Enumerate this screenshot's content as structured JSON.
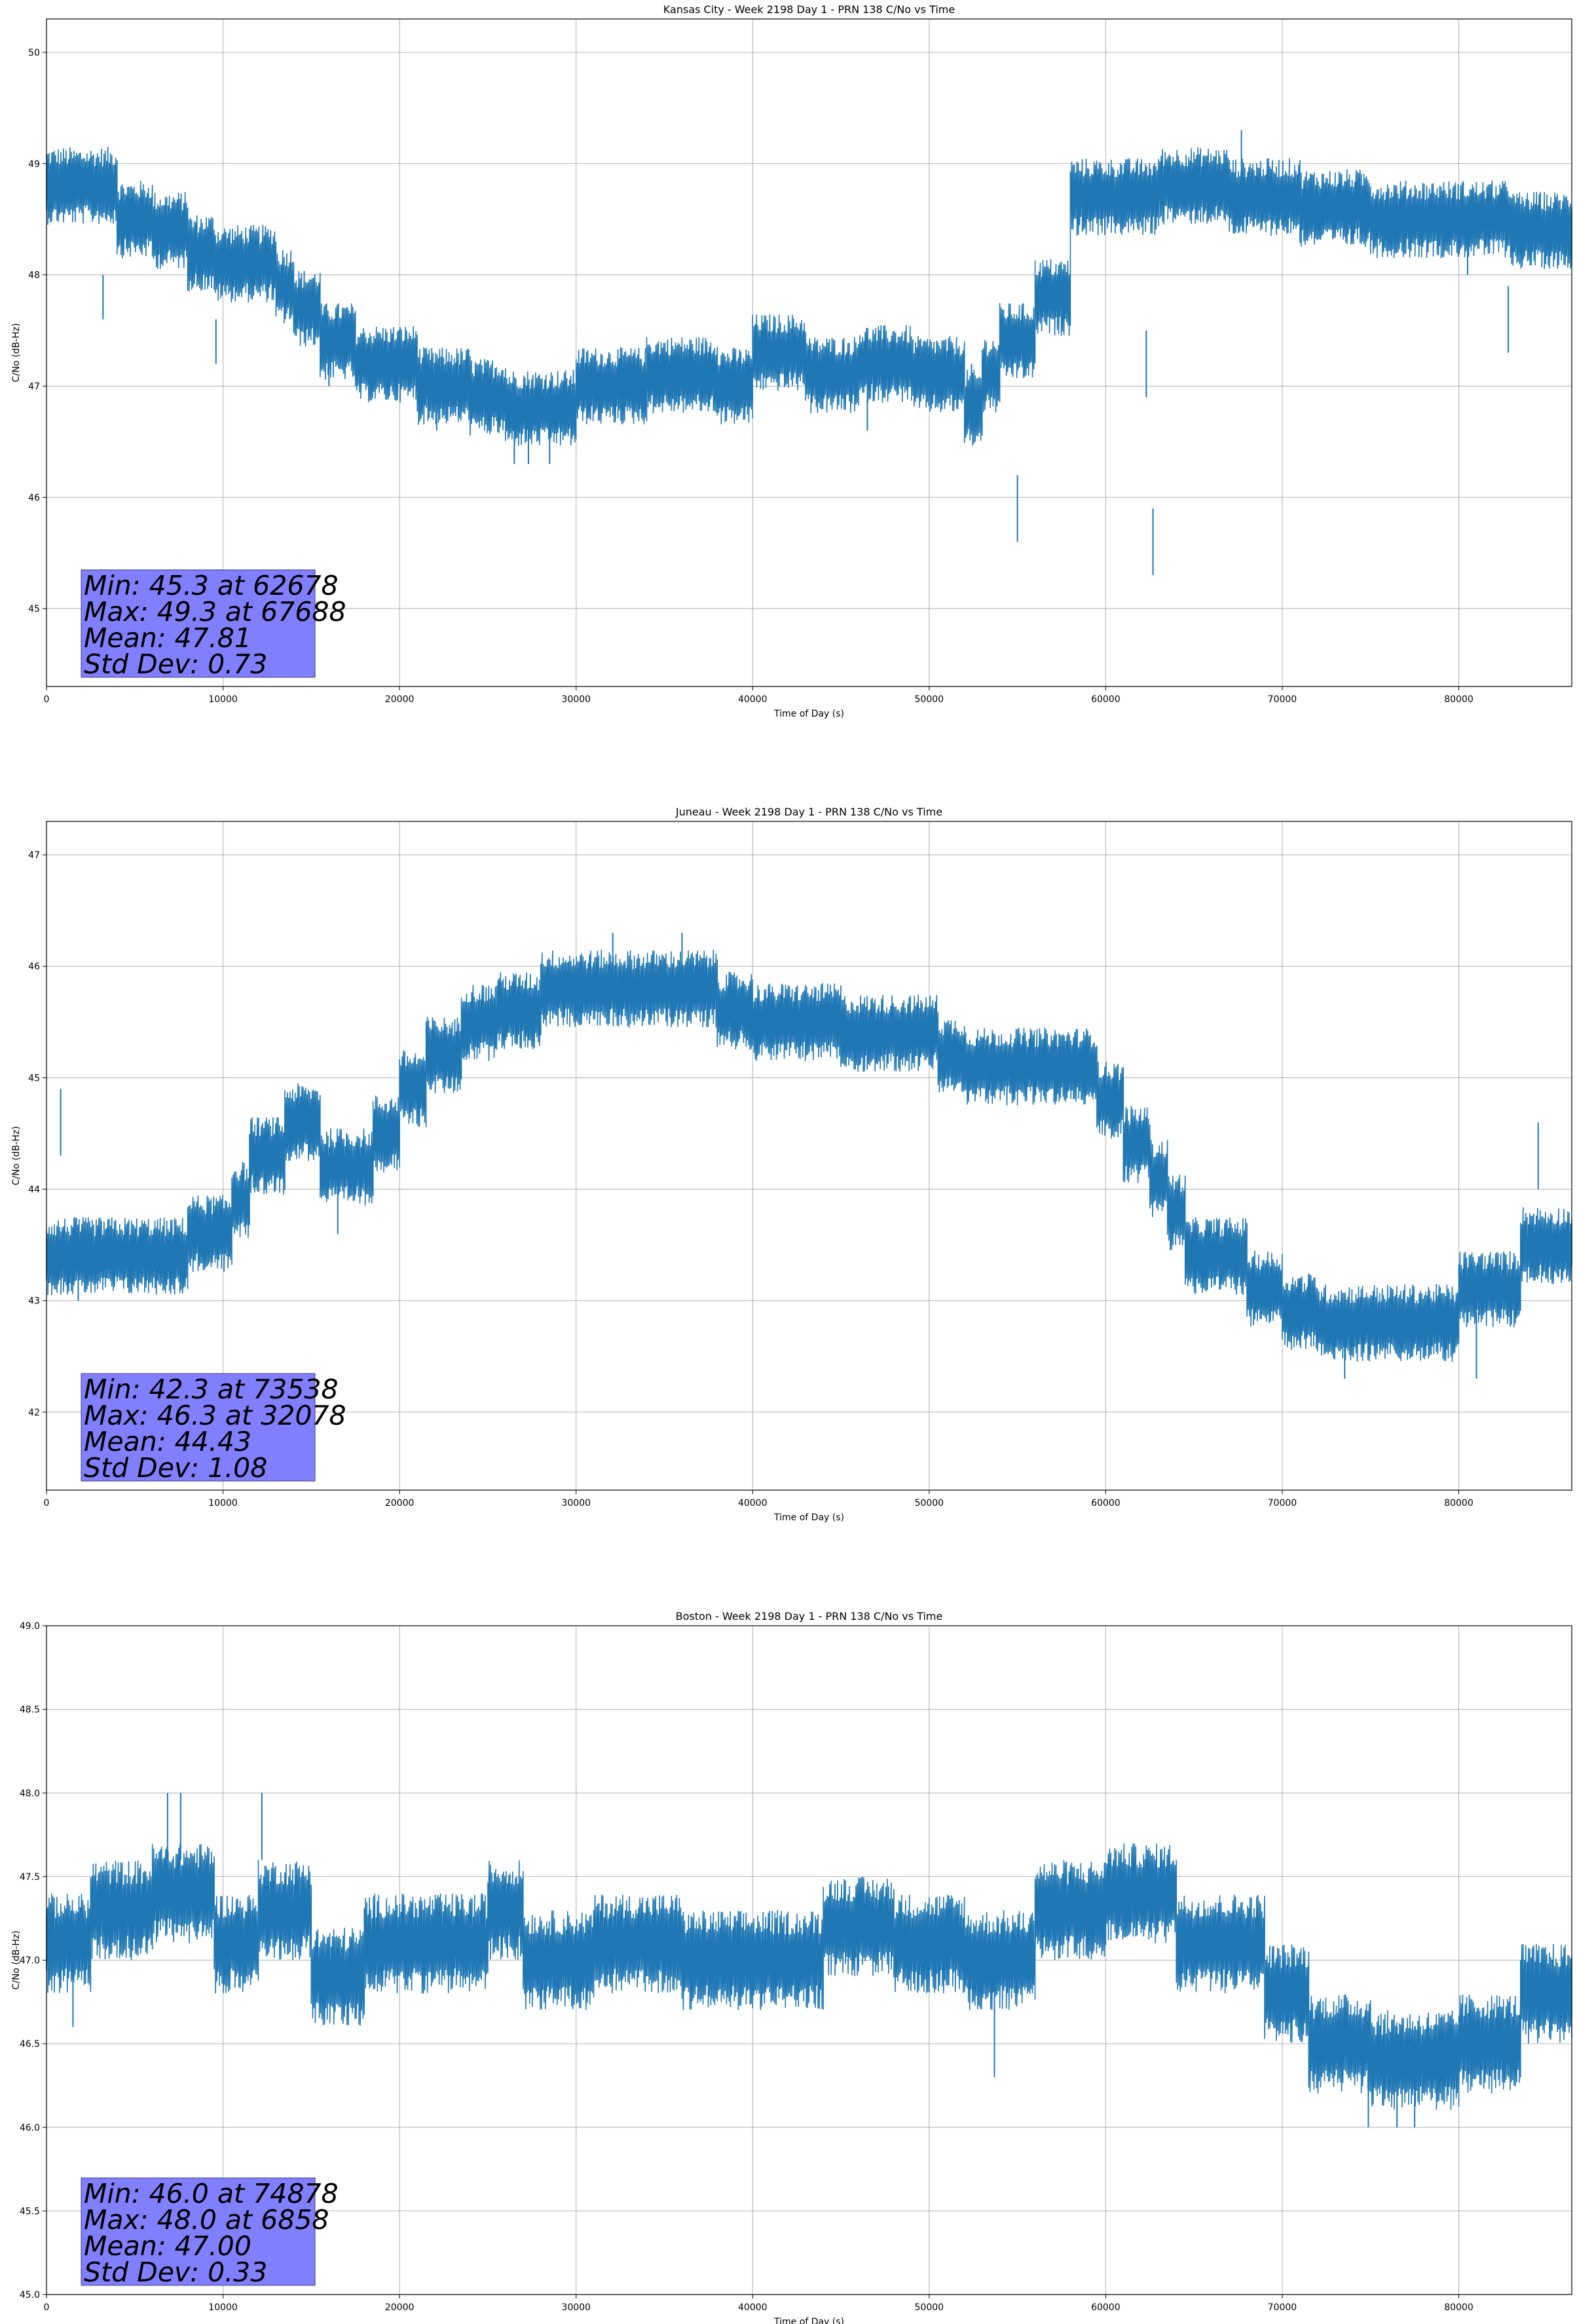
{
  "chart_data": [
    {
      "type": "line",
      "title": "Kansas City - Week 2198 Day 1 - PRN 138 C/No vs Time",
      "xlabel": "Time of Day (s)",
      "ylabel": "C/No (dB-Hz)",
      "xlim": [
        0,
        86400
      ],
      "ylim": [
        44.3,
        50.3
      ],
      "xticks": [
        0,
        10000,
        20000,
        30000,
        40000,
        50000,
        60000,
        70000,
        80000
      ],
      "yticks": [
        45,
        46,
        47,
        48,
        49,
        50
      ],
      "ytick_labels": [
        "45",
        "46",
        "47",
        "48",
        "49",
        "50"
      ],
      "grid": true,
      "color": "#1f77b4",
      "stats": [
        "Min: 45.3 at 62678",
        "Max: 49.3 at 67688",
        "Mean: 47.81",
        "Std Dev: 0.73"
      ],
      "series": [
        {
          "x": [
            0,
            4000,
            4000,
            6000,
            6000,
            8000,
            8000,
            9500,
            9500,
            13000,
            13000,
            14000,
            14000,
            15500,
            15500,
            17500,
            17500,
            21000,
            21000,
            24000,
            24000,
            26000,
            26000,
            30000,
            30000,
            34000,
            34000,
            38000,
            38000,
            40000,
            40000,
            43000,
            43000,
            46000,
            46000,
            49000,
            49000,
            52000,
            52000,
            53000,
            53000,
            54000,
            54000,
            56000,
            56000,
            58000,
            58000,
            63000,
            63000,
            67000,
            67000,
            71000,
            71000,
            75000,
            75000,
            79000,
            79000,
            83000,
            83000,
            86400
          ],
          "y": [
            48.8,
            48.8,
            48.5,
            48.5,
            48.4,
            48.4,
            48.2,
            48.2,
            48.1,
            48.1,
            47.9,
            47.9,
            47.7,
            47.7,
            47.4,
            47.4,
            47.2,
            47.2,
            47.0,
            47.0,
            46.9,
            46.9,
            46.8,
            46.8,
            47.0,
            47.0,
            47.1,
            47.1,
            47.0,
            47.0,
            47.3,
            47.3,
            47.1,
            47.1,
            47.2,
            47.2,
            47.1,
            47.1,
            46.8,
            46.8,
            47.1,
            47.1,
            47.4,
            47.4,
            47.8,
            47.8,
            48.7,
            48.7,
            48.8,
            48.8,
            48.7,
            48.7,
            48.6,
            48.6,
            48.5,
            48.5,
            48.5,
            48.5,
            48.4,
            48.4
          ],
          "band": 0.35,
          "outliers": [
            [
              3200,
              48.0
            ],
            [
              9600,
              47.6
            ],
            [
              16000,
              47.4
            ],
            [
              22100,
              46.6
            ],
            [
              26500,
              46.3
            ],
            [
              27300,
              46.3
            ],
            [
              28500,
              46.3
            ],
            [
              46500,
              46.6
            ],
            [
              52400,
              46.6
            ],
            [
              55000,
              45.6
            ],
            [
              62300,
              46.9
            ],
            [
              62678,
              45.3
            ],
            [
              67688,
              49.3
            ],
            [
              80500,
              48.4
            ],
            [
              82800,
              47.3
            ]
          ]
        }
      ]
    },
    {
      "type": "line",
      "title": "Juneau - Week 2198 Day 1 - PRN 138 C/No vs Time",
      "xlabel": "Time of Day (s)",
      "ylabel": "C/No (dB-Hz)",
      "xlim": [
        0,
        86400
      ],
      "ylim": [
        41.3,
        47.3
      ],
      "xticks": [
        0,
        10000,
        20000,
        30000,
        40000,
        50000,
        60000,
        70000,
        80000
      ],
      "yticks": [
        42,
        43,
        44,
        45,
        46,
        47
      ],
      "ytick_labels": [
        "42",
        "43",
        "44",
        "45",
        "46",
        "47"
      ],
      "grid": true,
      "color": "#1f77b4",
      "stats": [
        "Min: 42.3 at 73538",
        "Max: 46.3 at 32078",
        "Mean: 44.43",
        "Std Dev: 1.08"
      ],
      "series": [
        {
          "x": [
            0,
            8000,
            8000,
            10500,
            10500,
            11500,
            11500,
            13500,
            13500,
            15500,
            15500,
            18500,
            18500,
            20000,
            20000,
            21500,
            21500,
            23500,
            23500,
            25500,
            25500,
            28000,
            28000,
            33000,
            33000,
            38000,
            38000,
            40000,
            40000,
            45000,
            45000,
            50500,
            50500,
            52000,
            52000,
            55000,
            55000,
            59500,
            59500,
            61000,
            61000,
            62500,
            62500,
            63500,
            63500,
            64500,
            64500,
            68000,
            68000,
            70000,
            70000,
            72000,
            72000,
            75000,
            75000,
            80000,
            80000,
            83500,
            83500,
            86400
          ],
          "y": [
            43.4,
            43.4,
            43.6,
            43.6,
            43.9,
            43.9,
            44.3,
            44.3,
            44.6,
            44.6,
            44.2,
            44.2,
            44.5,
            44.5,
            44.9,
            44.9,
            45.2,
            45.2,
            45.5,
            45.5,
            45.6,
            45.6,
            45.8,
            45.8,
            45.8,
            45.8,
            45.6,
            45.6,
            45.5,
            45.5,
            45.4,
            45.4,
            45.2,
            45.2,
            45.1,
            45.1,
            45.1,
            45.1,
            44.8,
            44.8,
            44.4,
            44.4,
            44.1,
            44.1,
            43.8,
            43.8,
            43.4,
            43.4,
            43.1,
            43.1,
            42.9,
            42.9,
            42.8,
            42.8,
            42.8,
            42.8,
            43.1,
            43.1,
            43.5,
            43.5
          ],
          "band": 0.35,
          "outliers": [
            [
              800,
              44.3
            ],
            [
              1800,
              43.0
            ],
            [
              16500,
              43.6
            ],
            [
              32078,
              46.3
            ],
            [
              36000,
              46.3
            ],
            [
              71000,
              42.6
            ],
            [
              73538,
              42.3
            ],
            [
              81000,
              42.3
            ],
            [
              84500,
              44.0
            ]
          ]
        }
      ]
    },
    {
      "type": "line",
      "title": "Boston - Week 2198 Day 1 - PRN 138 C/No vs Time",
      "xlabel": "Time of Day (s)",
      "ylabel": "C/No (dB-Hz)",
      "xlim": [
        0,
        86400
      ],
      "ylim": [
        45.0,
        49.0
      ],
      "xticks": [
        0,
        10000,
        20000,
        30000,
        40000,
        50000,
        60000,
        70000,
        80000
      ],
      "yticks": [
        45.0,
        45.5,
        46.0,
        46.5,
        47.0,
        47.5,
        48.0,
        48.5,
        49.0
      ],
      "ytick_labels": [
        "45.0",
        "45.5",
        "46.0",
        "46.5",
        "47.0",
        "47.5",
        "48.0",
        "48.5",
        "49.0"
      ],
      "grid": true,
      "color": "#1f77b4",
      "stats": [
        "Min: 46.0 at 74878",
        "Max: 48.0 at 6858",
        "Mean: 47.00",
        "Std Dev: 0.33"
      ],
      "series": [
        {
          "x": [
            0,
            2500,
            2500,
            6000,
            6000,
            9500,
            9500,
            12000,
            12000,
            15000,
            15000,
            18000,
            18000,
            25000,
            25000,
            27000,
            27000,
            31000,
            31000,
            36000,
            36000,
            44000,
            44000,
            48000,
            48000,
            52000,
            52000,
            56000,
            56000,
            60000,
            60000,
            64000,
            64000,
            69000,
            69000,
            71500,
            71500,
            75000,
            75000,
            80000,
            80000,
            83500,
            83500,
            86400
          ],
          "y": [
            47.1,
            47.1,
            47.3,
            47.3,
            47.4,
            47.4,
            47.1,
            47.1,
            47.3,
            47.3,
            46.9,
            46.9,
            47.1,
            47.1,
            47.3,
            47.3,
            47.0,
            47.0,
            47.1,
            47.1,
            47.0,
            47.0,
            47.2,
            47.2,
            47.1,
            47.1,
            47.0,
            47.0,
            47.3,
            47.3,
            47.4,
            47.4,
            47.1,
            47.1,
            46.8,
            46.8,
            46.5,
            46.5,
            46.4,
            46.4,
            46.5,
            46.5,
            46.8,
            46.8
          ],
          "band": 0.3,
          "outliers": [
            [
              1500,
              46.6
            ],
            [
              6858,
              48.0
            ],
            [
              7600,
              48.0
            ],
            [
              12200,
              48.0
            ],
            [
              53700,
              46.3
            ],
            [
              74878,
              46.0
            ],
            [
              76500,
              46.0
            ],
            [
              77500,
              46.0
            ]
          ]
        }
      ]
    }
  ]
}
